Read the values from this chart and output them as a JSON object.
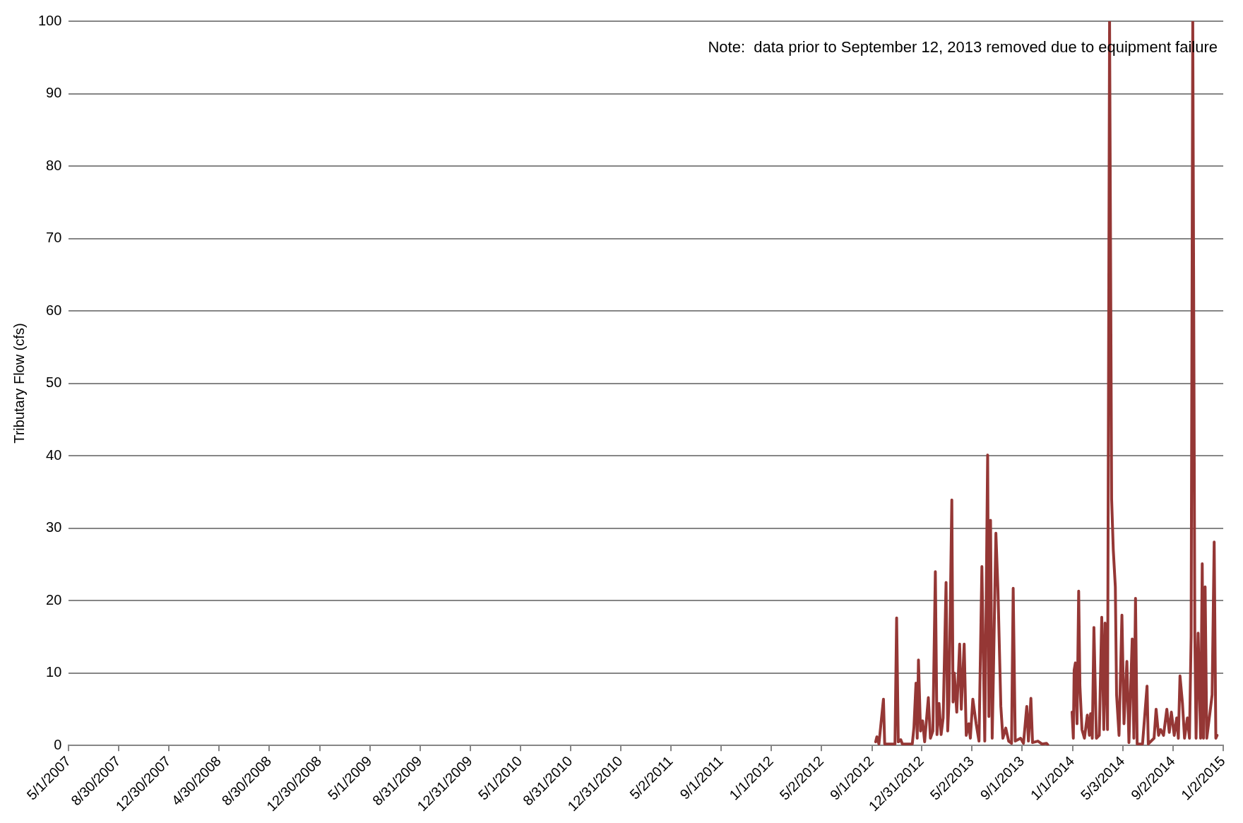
{
  "chart_data": {
    "type": "line",
    "ylabel": "Tributary Flow (cfs)",
    "annotations": [
      "Note:  data prior to September 12, 2013 removed due to equipment failure"
    ],
    "xlim": [
      "2007-05-01",
      "2015-01-02"
    ],
    "xticks": [
      {
        "value": "2007-05-01",
        "label": "5/1/2007"
      },
      {
        "value": "2007-08-30",
        "label": "8/30/2007"
      },
      {
        "value": "2007-12-30",
        "label": "12/30/2007"
      },
      {
        "value": "2008-04-30",
        "label": "4/30/2008"
      },
      {
        "value": "2008-08-30",
        "label": "8/30/2008"
      },
      {
        "value": "2008-12-30",
        "label": "12/30/2008"
      },
      {
        "value": "2009-05-01",
        "label": "5/1/2009"
      },
      {
        "value": "2009-08-31",
        "label": "8/31/2009"
      },
      {
        "value": "2009-12-31",
        "label": "12/31/2009"
      },
      {
        "value": "2010-05-01",
        "label": "5/1/2010"
      },
      {
        "value": "2010-08-31",
        "label": "8/31/2010"
      },
      {
        "value": "2010-12-31",
        "label": "12/31/2010"
      },
      {
        "value": "2011-05-02",
        "label": "5/2/2011"
      },
      {
        "value": "2011-09-01",
        "label": "9/1/2011"
      },
      {
        "value": "2012-01-01",
        "label": "1/1/2012"
      },
      {
        "value": "2012-05-02",
        "label": "5/2/2012"
      },
      {
        "value": "2012-09-01",
        "label": "9/1/2012"
      },
      {
        "value": "2012-12-31",
        "label": "12/31/2012"
      },
      {
        "value": "2013-05-02",
        "label": "5/2/2013"
      },
      {
        "value": "2013-09-01",
        "label": "9/1/2013"
      },
      {
        "value": "2014-01-01",
        "label": "1/1/2014"
      },
      {
        "value": "2014-05-03",
        "label": "5/3/2014"
      },
      {
        "value": "2014-09-02",
        "label": "9/2/2014"
      },
      {
        "value": "2015-01-02",
        "label": "1/2/2015"
      }
    ],
    "ylim": [
      0,
      100
    ],
    "yticks": [
      0,
      10,
      20,
      30,
      40,
      50,
      60,
      70,
      80,
      90,
      100
    ],
    "grid": "y",
    "marker": "none",
    "line_style": "solid",
    "x": [
      "2012-09-10",
      "2012-09-13",
      "2012-09-18",
      "2012-09-29",
      "2012-10-02",
      "2012-10-27",
      "2012-10-31",
      "2012-11-04",
      "2012-11-10",
      "2012-11-14",
      "2012-12-08",
      "2012-12-12",
      "2012-12-17",
      "2012-12-20",
      "2012-12-23",
      "2012-12-28",
      "2013-01-02",
      "2013-01-07",
      "2013-01-16",
      "2013-01-21",
      "2013-01-27",
      "2013-02-02",
      "2013-02-06",
      "2013-02-11",
      "2013-02-16",
      "2013-02-21",
      "2013-02-28",
      "2013-03-04",
      "2013-03-07",
      "2013-03-14",
      "2013-03-17",
      "2013-03-20",
      "2013-03-26",
      "2013-04-02",
      "2013-04-06",
      "2013-04-13",
      "2013-04-18",
      "2013-04-24",
      "2013-04-28",
      "2013-05-04",
      "2013-05-12",
      "2013-05-19",
      "2013-05-26",
      "2013-06-02",
      "2013-06-09",
      "2013-06-12",
      "2013-06-16",
      "2013-06-20",
      "2013-06-23",
      "2013-06-29",
      "2013-07-04",
      "2013-07-11",
      "2013-07-16",
      "2013-07-23",
      "2013-07-30",
      "2013-08-06",
      "2013-08-10",
      "2013-08-15",
      "2013-08-28",
      "2013-09-04",
      "2013-09-12",
      "2013-09-16",
      "2013-09-22",
      "2013-09-26",
      "2013-10-09",
      "2013-10-19",
      "2013-10-30",
      "2013-11-02",
      "2013-12-01",
      "2013-12-31",
      "2014-01-03",
      "2014-01-05",
      "2014-01-08",
      "2014-01-12",
      "2014-01-16",
      "2014-01-19",
      "2014-01-24",
      "2014-01-30",
      "2014-02-06",
      "2014-02-11",
      "2014-02-14",
      "2014-02-18",
      "2014-02-22",
      "2014-02-28",
      "2014-03-07",
      "2014-03-13",
      "2014-03-18",
      "2014-03-21",
      "2014-03-27",
      "2014-04-01",
      "2014-04-06",
      "2014-04-10",
      "2014-04-15",
      "2014-04-18",
      "2014-04-24",
      "2014-05-01",
      "2014-05-06",
      "2014-05-13",
      "2014-05-18",
      "2014-05-26",
      "2014-05-30",
      "2014-06-03",
      "2014-06-07",
      "2014-06-20",
      "2014-07-01",
      "2014-07-04",
      "2014-07-18",
      "2014-07-23",
      "2014-07-29",
      "2014-08-03",
      "2014-08-10",
      "2014-08-18",
      "2014-08-24",
      "2014-08-29",
      "2014-09-05",
      "2014-09-11",
      "2014-09-15",
      "2014-09-19",
      "2014-09-25",
      "2014-09-30",
      "2014-10-07",
      "2014-10-12",
      "2014-10-16",
      "2014-10-20",
      "2014-10-25",
      "2014-10-28",
      "2014-11-02",
      "2014-11-08",
      "2014-11-12",
      "2014-11-15",
      "2014-11-19",
      "2014-11-23",
      "2014-11-30",
      "2014-12-06",
      "2014-12-11",
      "2014-12-15",
      "2014-12-18"
    ],
    "series": [
      {
        "color": "#953735",
        "values": [
          0.5,
          1.2,
          0.2,
          6.4,
          0.2,
          0.2,
          17.6,
          0.5,
          0.8,
          0.2,
          0.2,
          2.5,
          8.6,
          1,
          11.8,
          2,
          3.4,
          0.5,
          6.6,
          1,
          2,
          24,
          1.5,
          5.8,
          1.5,
          3.8,
          22.5,
          2,
          6,
          33.9,
          6,
          10,
          4.6,
          14,
          5,
          14,
          1.4,
          3,
          1,
          6.4,
          3,
          0.6,
          24.7,
          0.6,
          40.1,
          4,
          31.1,
          1,
          10,
          29.3,
          21.5,
          5.4,
          1,
          2.4,
          0.6,
          0.3,
          21.7,
          0.6,
          1,
          0.3,
          5.4,
          0.6,
          6.5,
          0.4,
          0.6,
          0.2,
          0.3,
          0.1,
          null,
          4.6,
          1,
          10.4,
          11.4,
          3,
          21.3,
          8.2,
          2.2,
          1,
          4.2,
          1.4,
          4.4,
          1,
          16.3,
          1,
          1.4,
          17.7,
          2.2,
          16.9,
          2.2,
          100,
          34,
          27,
          21.9,
          7,
          1.4,
          18,
          3,
          11.6,
          0.4,
          14.7,
          1,
          20.3,
          0.2,
          0.2,
          8.2,
          0.2,
          1,
          5,
          1.4,
          2.2,
          1.4,
          5,
          1.8,
          4.6,
          1.4,
          3.8,
          1,
          9.6,
          5.8,
          1,
          3.8,
          1,
          15,
          100,
          15.5,
          1,
          15.5,
          1,
          25.1,
          1,
          21.9,
          1,
          4.2,
          7,
          28.1,
          1,
          1.4
        ]
      }
    ]
  }
}
